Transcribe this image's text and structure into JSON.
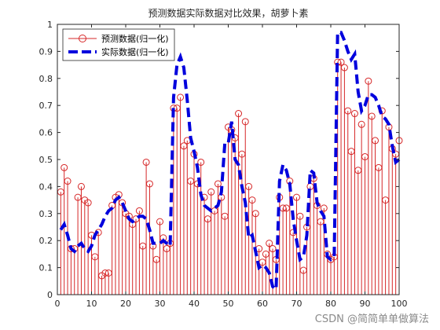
{
  "chart_data": {
    "type": "line",
    "title": "预测数据实际数据对比效果，胡萝卜素",
    "xlabel": "",
    "ylabel": "",
    "xlim": [
      0,
      100
    ],
    "ylim": [
      0,
      1
    ],
    "xticks": [
      0,
      10,
      20,
      30,
      40,
      50,
      60,
      70,
      80,
      90,
      100
    ],
    "yticks": [
      0,
      0.1,
      0.2,
      0.3,
      0.4,
      0.5,
      0.6,
      0.7,
      0.8,
      0.9,
      1
    ],
    "grid": false,
    "legend_position": "top-left",
    "x": [
      1,
      2,
      3,
      4,
      5,
      6,
      7,
      8,
      9,
      10,
      11,
      12,
      13,
      14,
      15,
      16,
      17,
      18,
      19,
      20,
      21,
      22,
      23,
      24,
      25,
      26,
      27,
      28,
      29,
      30,
      31,
      32,
      33,
      34,
      35,
      36,
      37,
      38,
      39,
      40,
      41,
      42,
      43,
      44,
      45,
      46,
      47,
      48,
      49,
      50,
      51,
      52,
      53,
      54,
      55,
      56,
      57,
      58,
      59,
      60,
      61,
      62,
      63,
      64,
      65,
      66,
      67,
      68,
      69,
      70,
      71,
      72,
      73,
      74,
      75,
      76,
      77,
      78,
      79,
      80,
      81,
      82,
      83,
      84,
      85,
      86,
      87,
      88,
      89,
      90,
      91,
      92,
      93,
      94,
      95,
      96,
      97,
      98,
      99,
      100
    ],
    "series": [
      {
        "name": "预测数据(归一化)",
        "style": "stem",
        "color": "#d62728",
        "values": [
          0.38,
          0.47,
          0.42,
          0.17,
          0.17,
          0.36,
          0.4,
          0.35,
          0.34,
          0.22,
          0.14,
          0.23,
          0.07,
          0.08,
          0.08,
          0.33,
          0.36,
          0.37,
          0.34,
          0.3,
          0.29,
          0.26,
          0.28,
          0.31,
          0.18,
          0.49,
          0.41,
          0.18,
          0.13,
          0.27,
          0.21,
          0.17,
          0.19,
          0.69,
          0.69,
          0.73,
          0.55,
          0.57,
          0.42,
          0.52,
          0.41,
          0.49,
          0.36,
          0.28,
          0.38,
          0.31,
          0.41,
          0.36,
          0.29,
          0.62,
          0.61,
          0.58,
          0.67,
          0.52,
          0.64,
          0.4,
          0.35,
          0.3,
          0.17,
          0.12,
          0.15,
          0.19,
          0.17,
          0.13,
          0.36,
          0.32,
          0.32,
          0.42,
          0.23,
          0.36,
          0.29,
          0.09,
          0.25,
          0.4,
          0.43,
          0.33,
          0.27,
          0.32,
          0.15,
          0.13,
          0.14,
          0.86,
          0.86,
          0.84,
          0.68,
          0.53,
          0.67,
          0.46,
          0.63,
          0.51,
          0.79,
          0.66,
          0.57,
          0.47,
          0.68,
          0.35,
          0.62,
          0.54,
          0.52,
          0.57
        ]
      },
      {
        "name": "实际数据(归一化)",
        "style": "dashed",
        "color": "#0000dd",
        "values": [
          0.24,
          0.26,
          0.22,
          0.17,
          0.16,
          0.18,
          0.19,
          0.17,
          0.16,
          0.18,
          0.22,
          0.24,
          0.26,
          0.29,
          0.31,
          0.32,
          0.35,
          0.36,
          0.34,
          0.31,
          0.28,
          0.27,
          0.28,
          0.29,
          0.29,
          0.28,
          0.24,
          0.19,
          0.19,
          0.19,
          0.2,
          0.19,
          0.18,
          0.73,
          0.85,
          0.88,
          0.84,
          0.72,
          0.58,
          0.53,
          0.47,
          0.37,
          0.33,
          0.32,
          0.31,
          0.32,
          0.33,
          0.38,
          0.56,
          0.56,
          0.64,
          0.5,
          0.48,
          0.4,
          0.34,
          0.21,
          0.22,
          0.16,
          0.1,
          0.11,
          0.1,
          0.08,
          0.03,
          0.02,
          0.42,
          0.48,
          0.46,
          0.41,
          0.28,
          0.2,
          0.13,
          0.14,
          0.22,
          0.46,
          0.45,
          0.34,
          0.31,
          0.29,
          0.14,
          0.13,
          0.14,
          0.97,
          0.97,
          0.94,
          0.9,
          0.87,
          0.89,
          0.75,
          0.68,
          0.7,
          0.74,
          0.74,
          0.73,
          0.7,
          0.66,
          0.65,
          0.63,
          0.55,
          0.49,
          0.5
        ]
      }
    ]
  },
  "watermark": "CSDN @简简单单做算法"
}
